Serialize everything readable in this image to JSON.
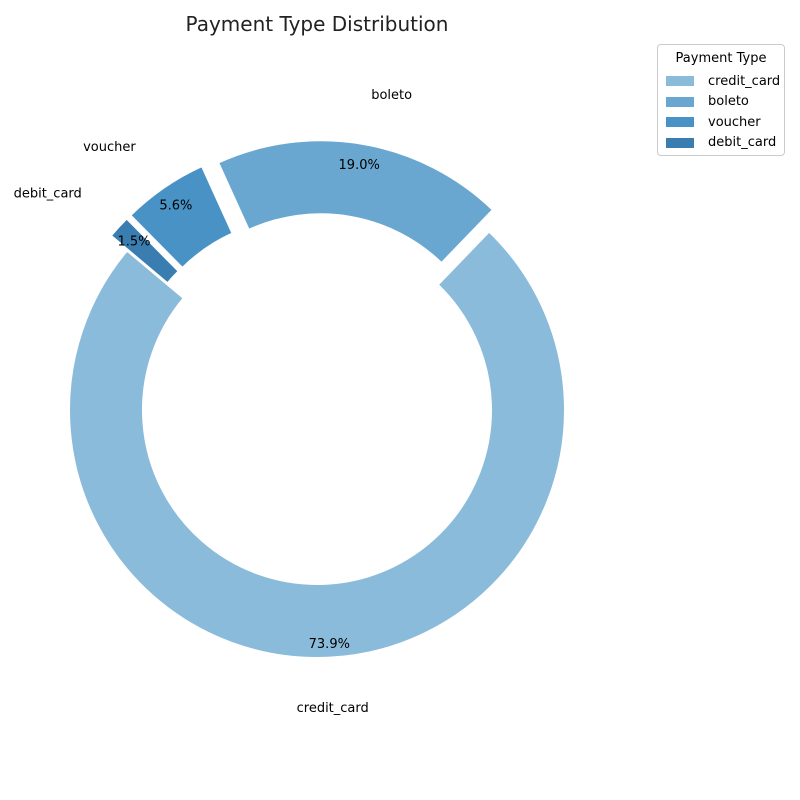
{
  "chart_data": {
    "type": "pie",
    "variant": "donut",
    "title": "Payment Type Distribution",
    "slices": [
      {
        "label": "credit_card",
        "value": 73.9,
        "pct_label": "73.9%",
        "color": "#8bbbdb",
        "exploded": false
      },
      {
        "label": "boleto",
        "value": 19.0,
        "pct_label": "19.0%",
        "color": "#69a7d1",
        "exploded": true
      },
      {
        "label": "voucher",
        "value": 5.6,
        "pct_label": "5.6%",
        "color": "#4892c5",
        "exploded": true
      },
      {
        "label": "debit_card",
        "value": 1.5,
        "pct_label": "1.5%",
        "color": "#3a7db1",
        "exploded": true
      }
    ],
    "legend": {
      "title": "Payment Type",
      "placement": "upper-right outside",
      "entries": [
        "credit_card",
        "boleto",
        "voucher",
        "debit_card"
      ]
    }
  }
}
